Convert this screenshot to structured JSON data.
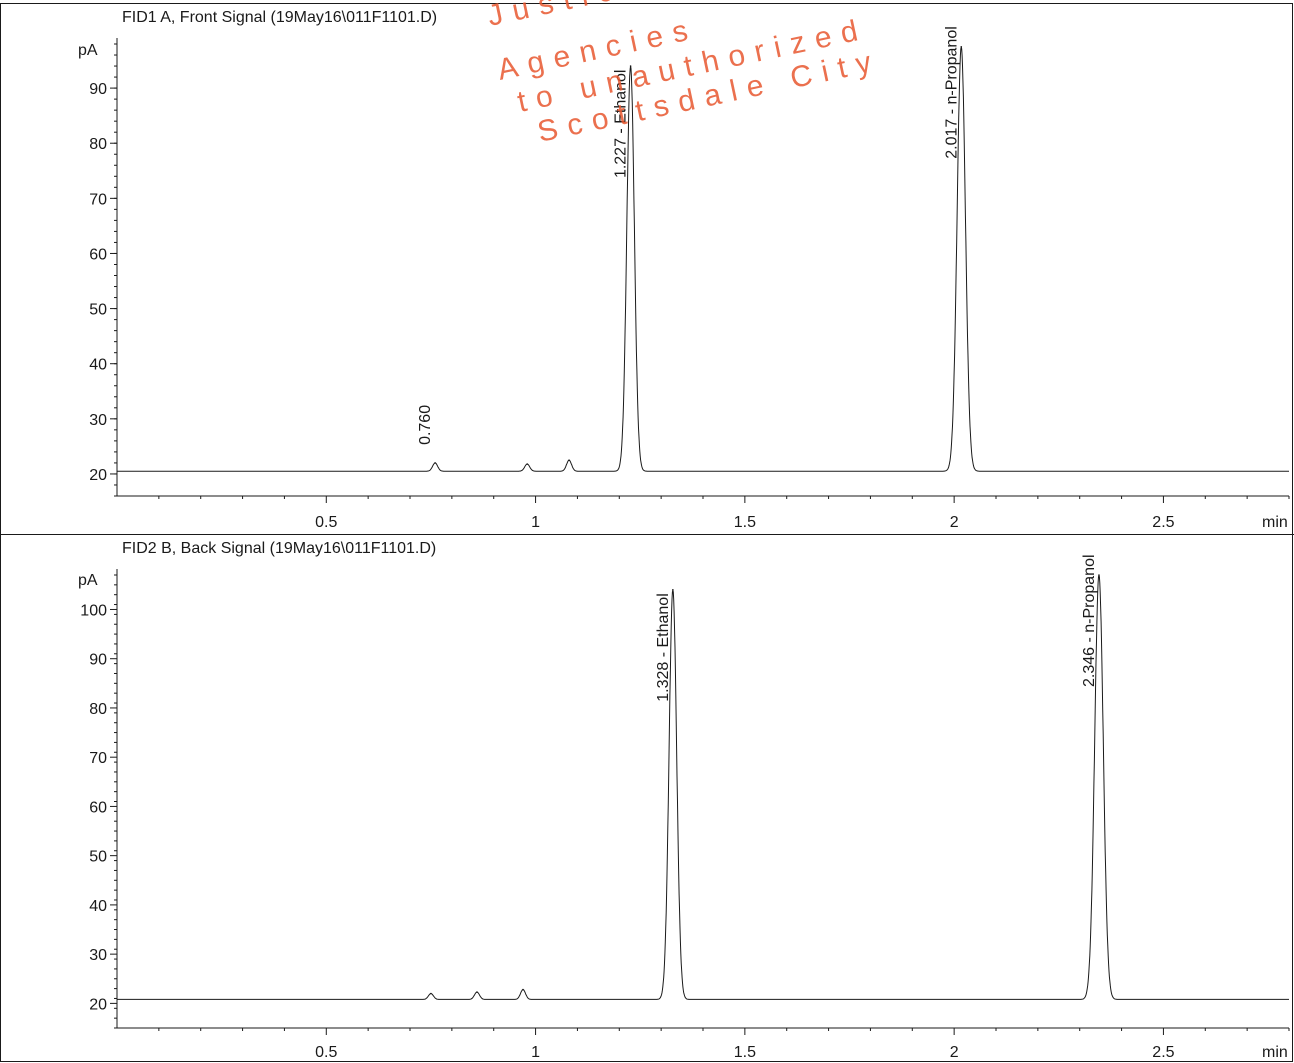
{
  "chart_data": [
    {
      "type": "line",
      "title": "FID1 A, Front Signal (19May16\\011F1101.D)",
      "ylabel": "pA",
      "xlabel": "min",
      "xlim": [
        0.0,
        2.8
      ],
      "ylim": [
        16,
        98
      ],
      "y_ticks": [
        20,
        30,
        40,
        50,
        60,
        70,
        80,
        90
      ],
      "x_ticks": [
        0.5,
        1,
        1.5,
        2,
        2.5
      ],
      "baseline": 20.5,
      "peaks": [
        {
          "rt": 0.76,
          "height": 22.0,
          "label": "0.760",
          "labeled": true
        },
        {
          "rt": 0.98,
          "height": 21.8,
          "label": "",
          "labeled": false
        },
        {
          "rt": 1.08,
          "height": 22.5,
          "label": "",
          "labeled": false
        },
        {
          "rt": 1.227,
          "height": 94.0,
          "label": "1.227 -  Ethanol",
          "labeled": true
        },
        {
          "rt": 2.017,
          "height": 97.5,
          "label": "2.017 -  n-Propanol",
          "labeled": true
        }
      ]
    },
    {
      "type": "line",
      "title": "FID2 B, Back Signal (19May16\\011F1101.D)",
      "ylabel": "pA",
      "xlabel": "min",
      "xlim": [
        0.0,
        2.8
      ],
      "ylim": [
        15,
        107
      ],
      "y_ticks": [
        20,
        30,
        40,
        50,
        60,
        70,
        80,
        90,
        100
      ],
      "x_ticks": [
        0.5,
        1,
        1.5,
        2,
        2.5
      ],
      "baseline": 20.8,
      "peaks": [
        {
          "rt": 0.75,
          "height": 22.0,
          "label": "",
          "labeled": false
        },
        {
          "rt": 0.86,
          "height": 22.3,
          "label": "",
          "labeled": false
        },
        {
          "rt": 0.97,
          "height": 22.8,
          "label": "",
          "labeled": false
        },
        {
          "rt": 1.328,
          "height": 104.0,
          "label": "1.328 -  Ethanol",
          "labeled": true
        },
        {
          "rt": 2.346,
          "height": 107.0,
          "label": "2.346 -  n-Propanol",
          "labeled": true
        }
      ]
    }
  ],
  "watermark": {
    "lines": [
      "Justice",
      "Agencies",
      "to unauthorized",
      "Scottsdale City"
    ],
    "color": "#e8572f"
  },
  "colors": {
    "trace": "#1a1a1a",
    "axis": "#1a1a1a"
  }
}
